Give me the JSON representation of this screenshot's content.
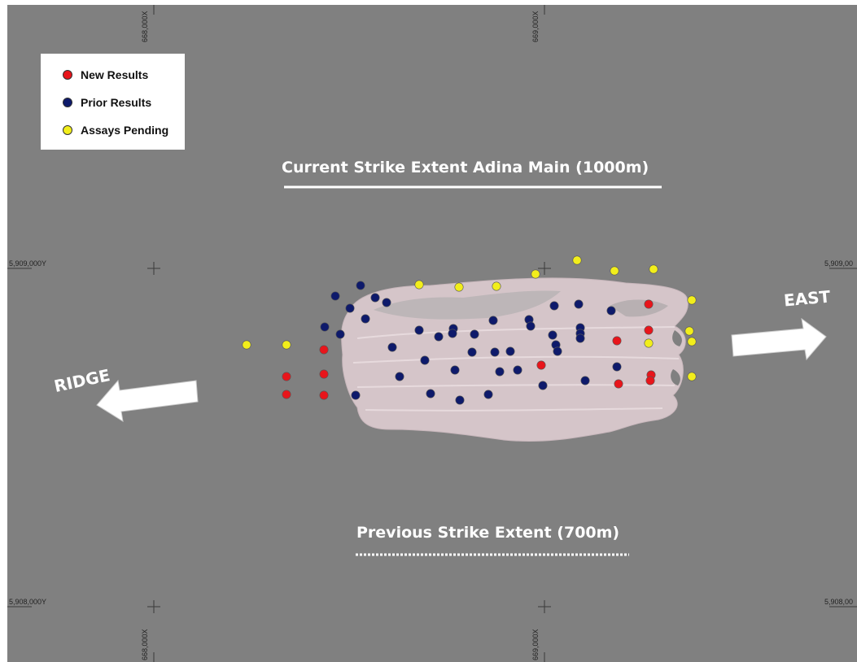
{
  "legend": {
    "items": [
      {
        "label": "New Results",
        "color": "#e8151b"
      },
      {
        "label": "Prior Results",
        "color": "#0e1a6b"
      },
      {
        "label": "Assays Pending",
        "color": "#f2ee1b"
      }
    ]
  },
  "labels": {
    "current_extent": "Current Strike Extent Adina Main (1000m)",
    "previous_extent": "Previous Strike Extent (700m)",
    "east": "EAST",
    "ridge": "RIDGE"
  },
  "grid_labels": {
    "x_668000_top": "668,000X",
    "x_669000_top": "669,000X",
    "x_668000_bottom": "668,000X",
    "x_669000_bottom": "669,000X",
    "y_5909000_left": "5,909,000Y",
    "y_5909000_right": "5,909,00",
    "y_5908000_left": "5,908,000Y",
    "y_5908000_right": "5,908,00"
  },
  "colors": {
    "background": "#808080",
    "orebody": "#d9c8cc",
    "arrow": "#ffffff"
  }
}
